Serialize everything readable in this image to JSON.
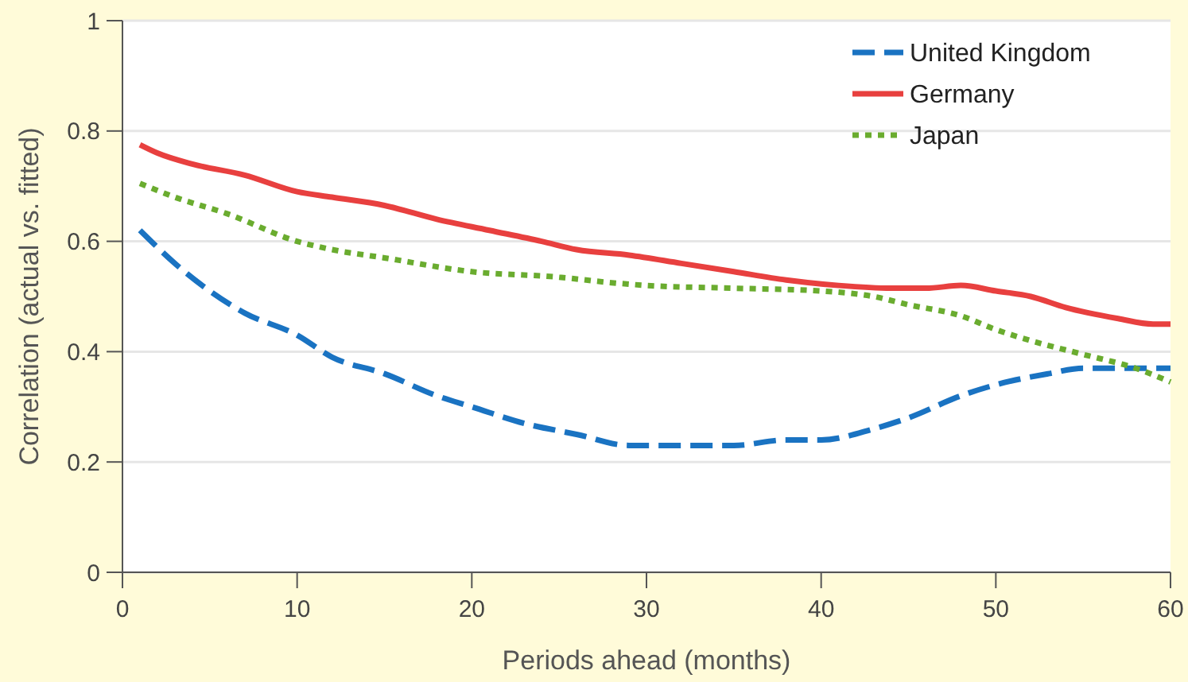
{
  "chart_data": {
    "type": "line",
    "xlabel": "Periods ahead (months)",
    "ylabel": "Correlation (actual vs. fitted)",
    "xlim": [
      0,
      60
    ],
    "xticks": [
      0,
      10,
      20,
      30,
      40,
      50,
      60
    ],
    "ylim": [
      0,
      1
    ],
    "yticks": [
      0,
      0.2,
      0.4,
      0.6,
      0.8,
      1
    ],
    "grid": "y",
    "legend": "top right",
    "series": [
      {
        "name": "United Kingdom",
        "color": "#1a73c2",
        "line_style": "dashed",
        "x": [
          1,
          3,
          5,
          7,
          10,
          12,
          15,
          18,
          20,
          23,
          26,
          29,
          32,
          35,
          38,
          40,
          43,
          45,
          48,
          50,
          53,
          55,
          58,
          60
        ],
        "values": [
          0.62,
          0.56,
          0.51,
          0.47,
          0.43,
          0.39,
          0.36,
          0.32,
          0.3,
          0.27,
          0.25,
          0.23,
          0.23,
          0.23,
          0.24,
          0.24,
          0.26,
          0.28,
          0.32,
          0.34,
          0.36,
          0.37,
          0.37,
          0.37
        ]
      },
      {
        "name": "Germany",
        "color": "#e8403f",
        "line_style": "solid",
        "x": [
          1,
          2,
          4,
          7,
          10,
          12,
          15,
          18,
          21,
          24,
          26,
          29,
          32,
          35,
          38,
          41,
          44,
          46,
          48,
          50,
          52,
          54,
          57,
          59,
          60
        ],
        "values": [
          0.775,
          0.76,
          0.74,
          0.72,
          0.69,
          0.68,
          0.665,
          0.64,
          0.62,
          0.6,
          0.585,
          0.575,
          0.56,
          0.545,
          0.53,
          0.52,
          0.515,
          0.515,
          0.52,
          0.51,
          0.5,
          0.48,
          0.46,
          0.45,
          0.45
        ]
      },
      {
        "name": "Japan",
        "color": "#6aac2f",
        "line_style": "dotted",
        "x": [
          1,
          3,
          6,
          10,
          12,
          15,
          20,
          25,
          28,
          30,
          35,
          40,
          43,
          45,
          48,
          50,
          52,
          55,
          58,
          60
        ],
        "values": [
          0.705,
          0.68,
          0.65,
          0.6,
          0.585,
          0.57,
          0.545,
          0.535,
          0.525,
          0.52,
          0.515,
          0.51,
          0.5,
          0.485,
          0.465,
          0.44,
          0.42,
          0.395,
          0.37,
          0.345
        ]
      }
    ]
  }
}
